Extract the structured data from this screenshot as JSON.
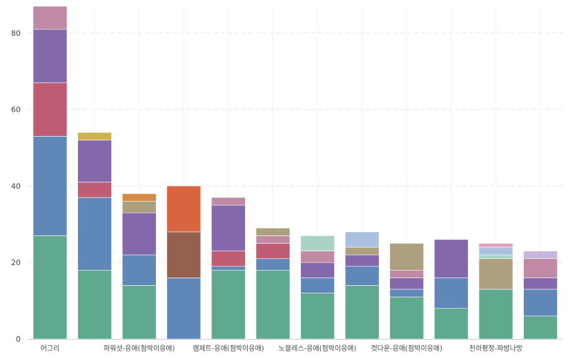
{
  "chart_data": {
    "type": "bar",
    "stacked": true,
    "title": "",
    "xlabel": "",
    "ylabel": "",
    "ylim": [
      0,
      87
    ],
    "yticks": [
      0,
      20,
      40,
      60,
      80
    ],
    "grid": "y-dashed",
    "legend": "none",
    "categories": [
      "어그리",
      "",
      "파워샷-응애(점박이응애)",
      "",
      "램제트-응애(점박이응애)",
      "",
      "노블레스-응애(점박이응애)",
      "",
      "컷다운-응애(점박이응애)",
      "",
      "천하평정-파밤나방",
      ""
    ],
    "bars": [
      [
        {
          "v": 27,
          "c": "#5fa98e"
        },
        {
          "v": 26,
          "c": "#5f87b8"
        },
        {
          "v": 14,
          "c": "#c05b74"
        },
        {
          "v": 14,
          "c": "#8468ac"
        },
        {
          "v": 6,
          "c": "#c089a4"
        }
      ],
      [
        {
          "v": 18,
          "c": "#5fa98e"
        },
        {
          "v": 19,
          "c": "#5f87b8"
        },
        {
          "v": 4,
          "c": "#c05b74"
        },
        {
          "v": 11,
          "c": "#8468ac"
        },
        {
          "v": 2,
          "c": "#cdb24c"
        }
      ],
      [
        {
          "v": 14,
          "c": "#5fa98e"
        },
        {
          "v": 8,
          "c": "#5f87b8"
        },
        {
          "v": 11,
          "c": "#8468ac"
        },
        {
          "v": 3,
          "c": "#ada07e"
        },
        {
          "v": 2,
          "c": "#d38b46"
        }
      ],
      [
        {
          "v": 16,
          "c": "#5f87b8"
        },
        {
          "v": 12,
          "c": "#95604e"
        },
        {
          "v": 12,
          "c": "#d8653f"
        }
      ],
      [
        {
          "v": 18,
          "c": "#5fa98e"
        },
        {
          "v": 1,
          "c": "#5f87b8"
        },
        {
          "v": 4,
          "c": "#c05b74"
        },
        {
          "v": 12,
          "c": "#8468ac"
        },
        {
          "v": 2,
          "c": "#c089a4"
        }
      ],
      [
        {
          "v": 18,
          "c": "#5fa98e"
        },
        {
          "v": 3,
          "c": "#5f87b8"
        },
        {
          "v": 4,
          "c": "#c05b74"
        },
        {
          "v": 2,
          "c": "#c089a4"
        },
        {
          "v": 2,
          "c": "#ada07e"
        }
      ],
      [
        {
          "v": 12,
          "c": "#5fa98e"
        },
        {
          "v": 4,
          "c": "#5f87b8"
        },
        {
          "v": 4,
          "c": "#8468ac"
        },
        {
          "v": 3,
          "c": "#c089a4"
        },
        {
          "v": 4,
          "c": "#a9d3c4"
        }
      ],
      [
        {
          "v": 14,
          "c": "#5fa98e"
        },
        {
          "v": 5,
          "c": "#5f87b8"
        },
        {
          "v": 3,
          "c": "#8468ac"
        },
        {
          "v": 2,
          "c": "#ada07e"
        },
        {
          "v": 4,
          "c": "#a9c1de"
        }
      ],
      [
        {
          "v": 11,
          "c": "#5fa98e"
        },
        {
          "v": 2,
          "c": "#5f87b8"
        },
        {
          "v": 3,
          "c": "#8468ac"
        },
        {
          "v": 2,
          "c": "#c089a4"
        },
        {
          "v": 7,
          "c": "#ada07e"
        }
      ],
      [
        {
          "v": 8,
          "c": "#5fa98e"
        },
        {
          "v": 8,
          "c": "#5f87b8"
        },
        {
          "v": 10,
          "c": "#8468ac"
        }
      ],
      [
        {
          "v": 13,
          "c": "#5fa98e"
        },
        {
          "v": 8,
          "c": "#ada07e"
        },
        {
          "v": 1,
          "c": "#a9d3c4"
        },
        {
          "v": 2,
          "c": "#a9c1de"
        },
        {
          "v": 1,
          "c": "#e3a1b7"
        }
      ],
      [
        {
          "v": 6,
          "c": "#5fa98e"
        },
        {
          "v": 7,
          "c": "#5f87b8"
        },
        {
          "v": 3,
          "c": "#8468ac"
        },
        {
          "v": 5,
          "c": "#c089a4"
        },
        {
          "v": 2,
          "c": "#c7b6db"
        }
      ]
    ]
  }
}
